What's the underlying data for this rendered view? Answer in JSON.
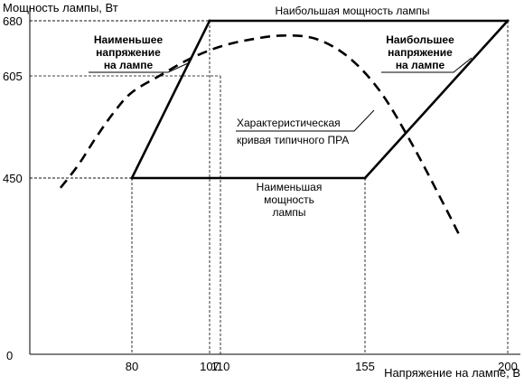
{
  "chart_data": {
    "type": "line",
    "xlabel": "Напряжение на лампе, В",
    "ylabel": "Мощность лампы, Вт",
    "origin_label": "0",
    "xlim": [
      0,
      200
    ],
    "ylim": [
      0,
      680
    ],
    "x_ticks": [
      80,
      107,
      110,
      155,
      200
    ],
    "y_ticks": [
      450,
      605,
      680
    ],
    "grid": false,
    "series": [
      {
        "name": "Наименьшее напряжение на лампе",
        "style": "solid",
        "x": [
          80,
          107
        ],
        "y": [
          450,
          680
        ]
      },
      {
        "name": "Наибольшая мощность лампы",
        "style": "solid",
        "x": [
          107,
          200
        ],
        "y": [
          680,
          680
        ]
      },
      {
        "name": "Наименьшая мощность лампы",
        "style": "solid",
        "x": [
          80,
          155
        ],
        "y": [
          450,
          450
        ]
      },
      {
        "name": "Наибольшее напряжение на лампе",
        "style": "solid",
        "x": [
          155,
          200
        ],
        "y": [
          450,
          680
        ]
      },
      {
        "name": "Характеристическая кривая типичного ПРА",
        "style": "dashed",
        "x": [
          40,
          50,
          60,
          70,
          80,
          90,
          100,
          110,
          120,
          130,
          140,
          150,
          160,
          170,
          180,
          185
        ],
        "y": [
          425,
          470,
          512,
          550,
          580,
          606,
          628,
          645,
          655,
          660,
          655,
          630,
          580,
          500,
          380,
          300
        ]
      }
    ],
    "reference_lines": [
      {
        "x": 80,
        "y": 450
      },
      {
        "x": 107,
        "y": 680
      },
      {
        "x": 110,
        "y": 605
      },
      {
        "x": 155,
        "y": 450
      },
      {
        "x": 200,
        "y": 680
      }
    ],
    "annotations": [
      {
        "lines": [
          "Наименьшее",
          "напряжение",
          "на лампе"
        ],
        "bold": true
      },
      {
        "lines": [
          "Наибольшее",
          "напряжение",
          "на лампе"
        ],
        "bold": true
      },
      {
        "lines": [
          "Наибольшая мощность лампы"
        ],
        "bold": false
      },
      {
        "lines": [
          "Характеристическая",
          "кривая типичного ПРА"
        ],
        "bold": false
      },
      {
        "lines": [
          "Наименьшая",
          "мощность",
          "лампы"
        ],
        "bold": false
      }
    ]
  }
}
